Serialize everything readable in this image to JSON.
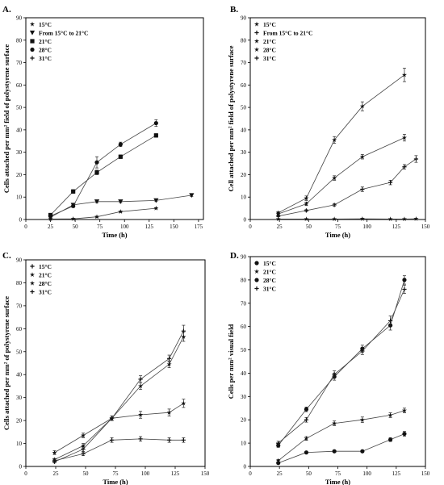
{
  "chart_data": [
    {
      "panel": "A.",
      "type": "line",
      "xlabel": "Time (h)",
      "ylabel": "Cells attached per mm² field of polystyrene surface",
      "xticks": [
        0,
        25,
        50,
        75,
        100,
        125,
        150,
        175
      ],
      "yticks": [
        0,
        10,
        20,
        30,
        40,
        50,
        60,
        70,
        80,
        90
      ],
      "xlim": [
        0,
        180
      ],
      "ylim": [
        0,
        90
      ],
      "legend_position": "top-left",
      "series": [
        {
          "name": "15°C",
          "marker": "star",
          "x": [
            25,
            48,
            72,
            96,
            132
          ],
          "y": [
            0.2,
            0.3,
            1.2,
            3.5,
            5
          ],
          "err": [
            0.2,
            0.2,
            0.3,
            0.3,
            0.3
          ]
        },
        {
          "name": "From 15°C to 21°C",
          "marker": "triangle-down",
          "x": [
            25,
            48,
            72,
            96,
            132,
            168
          ],
          "y": [
            1,
            6.5,
            8,
            8,
            8.5,
            10.8
          ],
          "err": [
            0.3,
            0.5,
            0.5,
            0.5,
            0.5,
            0.5
          ]
        },
        {
          "name": "21°C",
          "marker": "square",
          "x": [
            25,
            48,
            72,
            96,
            132
          ],
          "y": [
            2,
            12.5,
            21,
            28,
            37.5
          ],
          "err": [
            0.5,
            0.8,
            1,
            0.8,
            0.8
          ]
        },
        {
          "name": "28°C",
          "marker": "circle",
          "x": [
            25,
            48,
            72,
            96,
            132
          ],
          "y": [
            1.5,
            6,
            25.5,
            33.5,
            43
          ],
          "err": [
            0.3,
            0.6,
            2.5,
            1,
            1.5
          ]
        },
        {
          "name": "31°C",
          "marker": "cross",
          "x": [],
          "y": [],
          "err": []
        }
      ]
    },
    {
      "panel": "B.",
      "type": "line",
      "xlabel": "Time (h)",
      "ylabel": "Cell attached per mm² field of polystyrene surface",
      "xticks": [
        0,
        25,
        50,
        75,
        100,
        125,
        150
      ],
      "yticks": [
        0,
        10,
        20,
        30,
        40,
        50,
        60,
        70,
        80,
        90
      ],
      "xlim": [
        0,
        150
      ],
      "ylim": [
        0,
        90
      ],
      "legend_position": "top-left",
      "series": [
        {
          "name": "15°C",
          "marker": "star",
          "x": [
            24,
            48,
            72,
            96,
            120,
            132,
            142
          ],
          "y": [
            0.2,
            0.2,
            0.2,
            0.3,
            0.2,
            0.2,
            0.3
          ],
          "err": [
            0.2,
            0.2,
            0.2,
            0.2,
            0.2,
            0.2,
            0.2
          ]
        },
        {
          "name": "From 15°C to 21°C",
          "marker": "cross",
          "x": [
            24,
            48,
            72,
            96,
            120,
            132,
            142
          ],
          "y": [
            1.5,
            4,
            6.5,
            13.5,
            16.5,
            23.5,
            27
          ],
          "err": [
            0.3,
            0.4,
            0.5,
            1,
            1,
            1,
            1.5
          ]
        },
        {
          "name": "21°C",
          "marker": "star",
          "x": [
            24,
            48,
            72,
            96,
            132
          ],
          "y": [
            2.5,
            7,
            18.5,
            28,
            36.5
          ],
          "err": [
            0.4,
            0.8,
            1,
            1,
            1.5
          ]
        },
        {
          "name": "28°C",
          "marker": "star",
          "x": [
            24,
            48,
            72,
            96,
            132
          ],
          "y": [
            3,
            9.5,
            35.5,
            50.5,
            64.5
          ],
          "err": [
            0.5,
            1,
            1.5,
            2,
            3
          ]
        },
        {
          "name": "31°C",
          "marker": "cross",
          "x": [],
          "y": [],
          "err": []
        }
      ]
    },
    {
      "panel": "C.",
      "type": "line",
      "xlabel": "Time (h)",
      "ylabel": "Cells attached per mm² of polystyrene surface",
      "xticks": [
        0,
        25,
        50,
        75,
        100,
        125,
        150
      ],
      "yticks": [
        0,
        10,
        20,
        30,
        40,
        50,
        60,
        70,
        80,
        90
      ],
      "xlim": [
        0,
        150
      ],
      "ylim": [
        0,
        90
      ],
      "legend_position": "top-left",
      "series": [
        {
          "name": "15°C",
          "marker": "cross",
          "x": [
            24,
            48,
            72,
            96,
            120,
            132
          ],
          "y": [
            2,
            7.5,
            21,
            38,
            47,
            59
          ],
          "err": [
            0.5,
            1,
            1,
            1.5,
            1.5,
            2.5
          ]
        },
        {
          "name": "21°C",
          "marker": "star",
          "x": [
            24,
            48,
            72,
            96,
            120,
            132
          ],
          "y": [
            3,
            9,
            21,
            35,
            44.5,
            56.5
          ],
          "err": [
            0.5,
            1,
            1,
            1.5,
            1.5,
            2
          ]
        },
        {
          "name": "28°C",
          "marker": "star",
          "x": [
            24,
            48,
            72,
            96,
            120,
            132
          ],
          "y": [
            6,
            13.5,
            21,
            22.5,
            23.5,
            27.5
          ],
          "err": [
            0.8,
            1,
            1,
            1.5,
            1.5,
            1.8
          ]
        },
        {
          "name": "31°C",
          "marker": "cross",
          "x": [
            24,
            48,
            72,
            96,
            120,
            132
          ],
          "y": [
            2.5,
            5.5,
            11.5,
            12,
            11.5,
            11.5
          ],
          "err": [
            0.5,
            0.8,
            1,
            1,
            1,
            1
          ]
        }
      ]
    },
    {
      "panel": "D.",
      "type": "line",
      "xlabel": "Time (h)",
      "ylabel": "Cells per mm² visual field",
      "xticks": [
        0,
        25,
        50,
        75,
        100,
        125,
        150
      ],
      "yticks": [
        0,
        10,
        20,
        30,
        40,
        50,
        60,
        70,
        80,
        90
      ],
      "xlim": [
        0,
        150
      ],
      "ylim": [
        0,
        90
      ],
      "legend_position": "top-left",
      "series": [
        {
          "name": "15°C",
          "marker": "circle",
          "x": [
            24,
            48,
            72,
            96,
            120,
            132
          ],
          "y": [
            1.5,
            6,
            6.5,
            6.5,
            11.5,
            14
          ],
          "err": [
            0.5,
            0.5,
            0.5,
            0.5,
            0.8,
            1
          ]
        },
        {
          "name": "21°C",
          "marker": "star",
          "x": [
            24,
            48,
            72,
            96,
            120,
            132
          ],
          "y": [
            2.5,
            12,
            18.5,
            20,
            22,
            24
          ],
          "err": [
            0.5,
            0.8,
            1,
            1.2,
            1,
            1
          ]
        },
        {
          "name": "28°C",
          "marker": "circle",
          "x": [
            24,
            48,
            72,
            96,
            120,
            132
          ],
          "y": [
            9,
            24.5,
            38.5,
            50.5,
            60.5,
            80
          ],
          "err": [
            0.8,
            1,
            1.5,
            1.5,
            2,
            1.8
          ]
        },
        {
          "name": "31°C",
          "marker": "cross",
          "x": [
            24,
            48,
            72,
            96,
            120,
            132
          ],
          "y": [
            10,
            20,
            39.5,
            49.5,
            62.5,
            76
          ],
          "err": [
            0.8,
            1,
            1.5,
            1.5,
            2,
            1.8
          ]
        }
      ]
    }
  ]
}
